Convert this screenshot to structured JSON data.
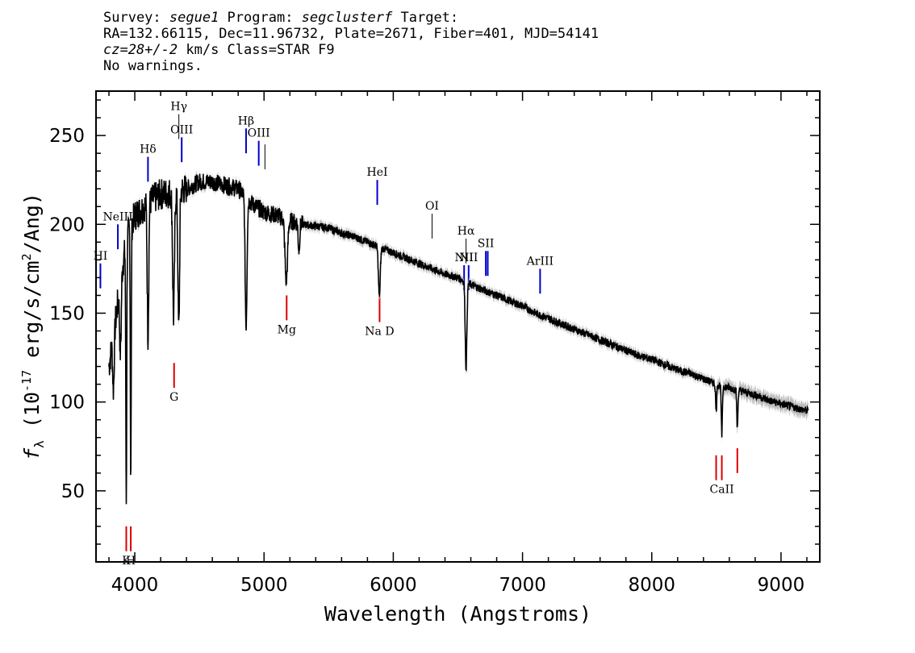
{
  "header": {
    "line1_prefix": "Survey: ",
    "survey": "segue1",
    "line1_mid": " Program: ",
    "program": "segclusterf",
    "line1_suffix": " Target:",
    "line2": "RA=132.66115, Dec=11.96732, Plate=2671, Fiber=401, MJD=54141",
    "line3_cz": "cz=28+/-2",
    "line3_rest": " km/s Class=STAR F9",
    "line4": "No warnings."
  },
  "chart_data": {
    "type": "line",
    "xlabel": "Wavelength (Angstroms)",
    "ylabel_main": "f",
    "ylabel_sub": "λ",
    "ylabel_rest": " (10",
    "ylabel_exp": "-17",
    "ylabel_rest2": " erg/s/cm",
    "ylabel_exp2": "2",
    "ylabel_rest3": "/Ang)",
    "xlim": [
      3700,
      9300
    ],
    "ylim": [
      10,
      275
    ],
    "xticks": [
      4000,
      5000,
      6000,
      7000,
      8000,
      9000
    ],
    "yticks": [
      50,
      100,
      150,
      200,
      250
    ],
    "xtick_labels": [
      "4000",
      "5000",
      "6000",
      "7000",
      "8000",
      "9000"
    ],
    "ytick_labels": [
      "50",
      "100",
      "150",
      "200",
      "250"
    ],
    "series_color": "#000000",
    "error_color": "#bbbbbb",
    "continuum": [
      [
        3800,
        120
      ],
      [
        3850,
        145
      ],
      [
        3900,
        175
      ],
      [
        3950,
        195
      ],
      [
        4000,
        205
      ],
      [
        4100,
        212
      ],
      [
        4200,
        217
      ],
      [
        4300,
        218
      ],
      [
        4400,
        220
      ],
      [
        4500,
        224
      ],
      [
        4600,
        224
      ],
      [
        4700,
        222
      ],
      [
        4800,
        220
      ],
      [
        4900,
        212
      ],
      [
        5000,
        207
      ],
      [
        5100,
        205
      ],
      [
        5200,
        202
      ],
      [
        5300,
        200
      ],
      [
        5400,
        199
      ],
      [
        5500,
        198
      ],
      [
        5600,
        195
      ],
      [
        5700,
        193
      ],
      [
        5800,
        190
      ],
      [
        5900,
        187
      ],
      [
        6000,
        184
      ],
      [
        6100,
        181
      ],
      [
        6200,
        178
      ],
      [
        6300,
        175
      ],
      [
        6400,
        172
      ],
      [
        6500,
        170
      ],
      [
        6600,
        166
      ],
      [
        6700,
        163
      ],
      [
        6800,
        160
      ],
      [
        6900,
        157
      ],
      [
        7000,
        154
      ],
      [
        7100,
        150
      ],
      [
        7200,
        147
      ],
      [
        7300,
        144
      ],
      [
        7400,
        141
      ],
      [
        7500,
        138
      ],
      [
        7600,
        135
      ],
      [
        7700,
        132
      ],
      [
        7800,
        129
      ],
      [
        7900,
        126
      ],
      [
        8000,
        124
      ],
      [
        8100,
        121
      ],
      [
        8200,
        118
      ],
      [
        8300,
        116
      ],
      [
        8400,
        113
      ],
      [
        8500,
        110
      ],
      [
        8600,
        108
      ],
      [
        8700,
        106
      ],
      [
        8800,
        104
      ],
      [
        8900,
        101
      ],
      [
        9000,
        99
      ],
      [
        9100,
        97
      ],
      [
        9200,
        95
      ]
    ],
    "absorption_lines": [
      {
        "center": 3835,
        "depth": 30,
        "width": 8
      },
      {
        "center": 3889,
        "depth": 40,
        "width": 9
      },
      {
        "center": 3934,
        "depth": 145,
        "width": 5
      },
      {
        "center": 3969,
        "depth": 140,
        "width": 5
      },
      {
        "center": 4102,
        "depth": 75,
        "width": 8
      },
      {
        "center": 4300,
        "depth": 70,
        "width": 10
      },
      {
        "center": 4340,
        "depth": 78,
        "width": 9
      },
      {
        "center": 4861,
        "depth": 72,
        "width": 10
      },
      {
        "center": 5172,
        "depth": 35,
        "width": 14
      },
      {
        "center": 5270,
        "depth": 15,
        "width": 8
      },
      {
        "center": 5892,
        "depth": 28,
        "width": 10
      },
      {
        "center": 6563,
        "depth": 48,
        "width": 9
      },
      {
        "center": 8498,
        "depth": 15,
        "width": 6
      },
      {
        "center": 8542,
        "depth": 28,
        "width": 6
      },
      {
        "center": 8662,
        "depth": 22,
        "width": 6
      }
    ],
    "emission_markers": [
      {
        "label": "HI",
        "x": 3734,
        "y_top": 178,
        "y_bottom": 164
      },
      {
        "label": "NeIII",
        "x": 3869,
        "y_top": 200,
        "y_bottom": 186
      },
      {
        "label": "Hδ",
        "x": 4102,
        "y_top": 238,
        "y_bottom": 224
      },
      {
        "label": "Hγ",
        "x": 4341,
        "y_top": 262,
        "y_bottom": 248
      },
      {
        "label": "OIII",
        "x": 4363,
        "y_top": 249,
        "y_bottom": 235
      },
      {
        "label": "Hβ",
        "x": 4861,
        "y_top": 254,
        "y_bottom": 240
      },
      {
        "label": "OIII",
        "x": 4959,
        "y_top": 247,
        "y_bottom": 233
      },
      {
        "label": "",
        "x": 5007,
        "y_top": 245,
        "y_bottom": 231
      },
      {
        "label": "HeI",
        "x": 5876,
        "y_top": 225,
        "y_bottom": 211
      },
      {
        "label": "OI",
        "x": 6300,
        "y_top": 206,
        "y_bottom": 192
      },
      {
        "label": "NII",
        "x": 6548,
        "y_top": 177,
        "y_bottom": 163
      },
      {
        "label": "Hα",
        "x": 6563,
        "y_top": 192,
        "y_bottom": 178
      },
      {
        "label": "NII",
        "x": 6583,
        "y_top": 177,
        "y_bottom": 163
      },
      {
        "label": "SII",
        "x": 6716,
        "y_top": 185,
        "y_bottom": 171
      },
      {
        "label": "",
        "x": 6731,
        "y_top": 185,
        "y_bottom": 171
      },
      {
        "label": "ArIII",
        "x": 7136,
        "y_top": 175,
        "y_bottom": 161
      }
    ],
    "absorption_markers": [
      {
        "label": "K",
        "x": 3934,
        "y_top": 30,
        "y_bottom": 16
      },
      {
        "label": "H",
        "x": 3969,
        "y_top": 30,
        "y_bottom": 16
      },
      {
        "label": "G",
        "x": 4304,
        "y_top": 122,
        "y_bottom": 108
      },
      {
        "label": "Mg",
        "x": 5175,
        "y_top": 160,
        "y_bottom": 146
      },
      {
        "label": "Na D",
        "x": 5894,
        "y_top": 159,
        "y_bottom": 145
      },
      {
        "label": "",
        "x": 8498,
        "y_top": 70,
        "y_bottom": 56
      },
      {
        "label": "CaII",
        "x": 8542,
        "y_top": 70,
        "y_bottom": 56
      },
      {
        "label": "",
        "x": 8662,
        "y_top": 74,
        "y_bottom": 60
      }
    ],
    "emission_color": "#0000cc",
    "absorption_color": "#dd0000",
    "thin_marker_color": "#000000"
  }
}
